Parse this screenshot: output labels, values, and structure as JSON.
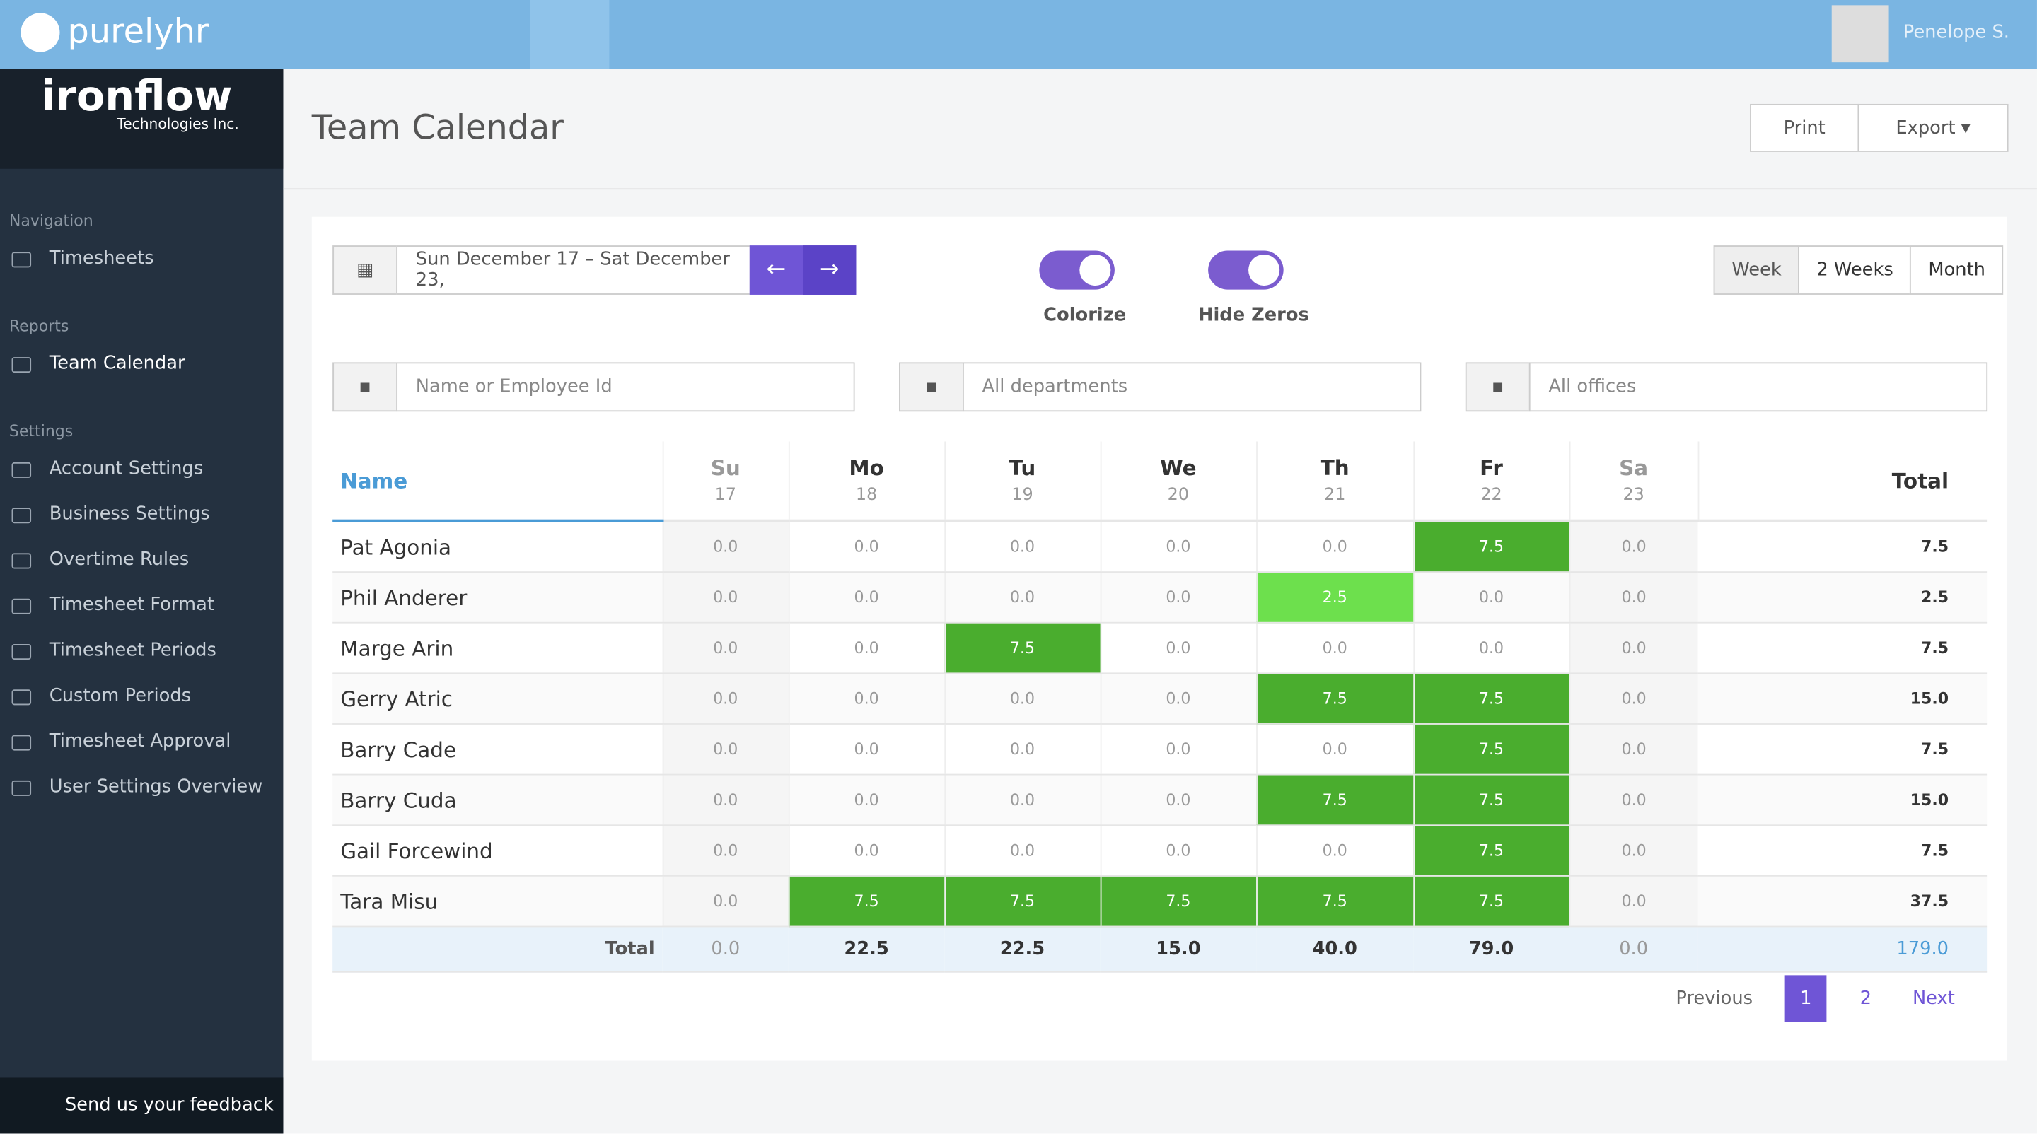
{
  "header": {
    "logo": "purelyhr",
    "user": "Penelope S."
  },
  "sidebar": {
    "company": "ironflow",
    "company_sub": "Technologies Inc.",
    "sections": [
      {
        "title": "Navigation",
        "items": [
          "Timesheets"
        ]
      },
      {
        "title": "Reports",
        "items": [
          "Team Calendar"
        ]
      },
      {
        "title": "Settings",
        "items": [
          "Account Settings",
          "Business Settings",
          "Overtime Rules",
          "Timesheet Format",
          "Timesheet Periods",
          "Custom Periods",
          "Timesheet Approval",
          "User Settings Overview"
        ]
      }
    ],
    "feedback": "Send us your feedback"
  },
  "page": {
    "title": "Team Calendar",
    "print": "Print",
    "export": "Export"
  },
  "controls": {
    "date_range": "Sun December 17 – Sat December 23,",
    "toggles": [
      "Colorize",
      "Hide Zeros"
    ],
    "views": [
      "Week",
      "2 Weeks",
      "Month"
    ],
    "filters": [
      "Name or Employee Id",
      "All departments",
      "All offices"
    ]
  },
  "table": {
    "name_header": "Name",
    "total_header": "Total",
    "days": [
      {
        "abbr": "Su",
        "date": "17"
      },
      {
        "abbr": "Mo",
        "date": "18"
      },
      {
        "abbr": "Tu",
        "date": "19"
      },
      {
        "abbr": "We",
        "date": "20"
      },
      {
        "abbr": "Th",
        "date": "21"
      },
      {
        "abbr": "Fr",
        "date": "22"
      },
      {
        "abbr": "Sa",
        "date": "23"
      }
    ],
    "rows": [
      {
        "name": "Pat Agonia",
        "hours": [
          "0.0",
          "0.0",
          "0.0",
          "0.0",
          "0.0",
          "7.5",
          "0.0"
        ],
        "total": "7.5"
      },
      {
        "name": "Phil Anderer",
        "hours": [
          "0.0",
          "0.0",
          "0.0",
          "0.0",
          "2.5",
          "0.0",
          "0.0"
        ],
        "total": "2.5"
      },
      {
        "name": "Marge Arin",
        "hours": [
          "0.0",
          "0.0",
          "7.5",
          "0.0",
          "0.0",
          "0.0",
          "0.0"
        ],
        "total": "7.5"
      },
      {
        "name": "Gerry Atric",
        "hours": [
          "0.0",
          "0.0",
          "0.0",
          "0.0",
          "7.5",
          "7.5",
          "0.0"
        ],
        "total": "15.0"
      },
      {
        "name": "Barry Cade",
        "hours": [
          "0.0",
          "0.0",
          "0.0",
          "0.0",
          "0.0",
          "7.5",
          "0.0"
        ],
        "total": "7.5"
      },
      {
        "name": "Barry Cuda",
        "hours": [
          "0.0",
          "0.0",
          "0.0",
          "0.0",
          "7.5",
          "7.5",
          "0.0"
        ],
        "total": "15.0"
      },
      {
        "name": "Gail Forcewind",
        "hours": [
          "0.0",
          "0.0",
          "0.0",
          "0.0",
          "0.0",
          "7.5",
          "0.0"
        ],
        "total": "7.5"
      },
      {
        "name": "Tara Misu",
        "hours": [
          "0.0",
          "7.5",
          "7.5",
          "7.5",
          "7.5",
          "7.5",
          "0.0"
        ],
        "total": "37.5"
      }
    ],
    "totals": {
      "label": "Total",
      "hours": [
        "0.0",
        "22.5",
        "22.5",
        "15.0",
        "40.0",
        "79.0",
        "0.0"
      ],
      "total": "179.0"
    }
  },
  "pagination": {
    "previous": "Previous",
    "pages": [
      "1",
      "2"
    ],
    "next": "Next"
  }
}
